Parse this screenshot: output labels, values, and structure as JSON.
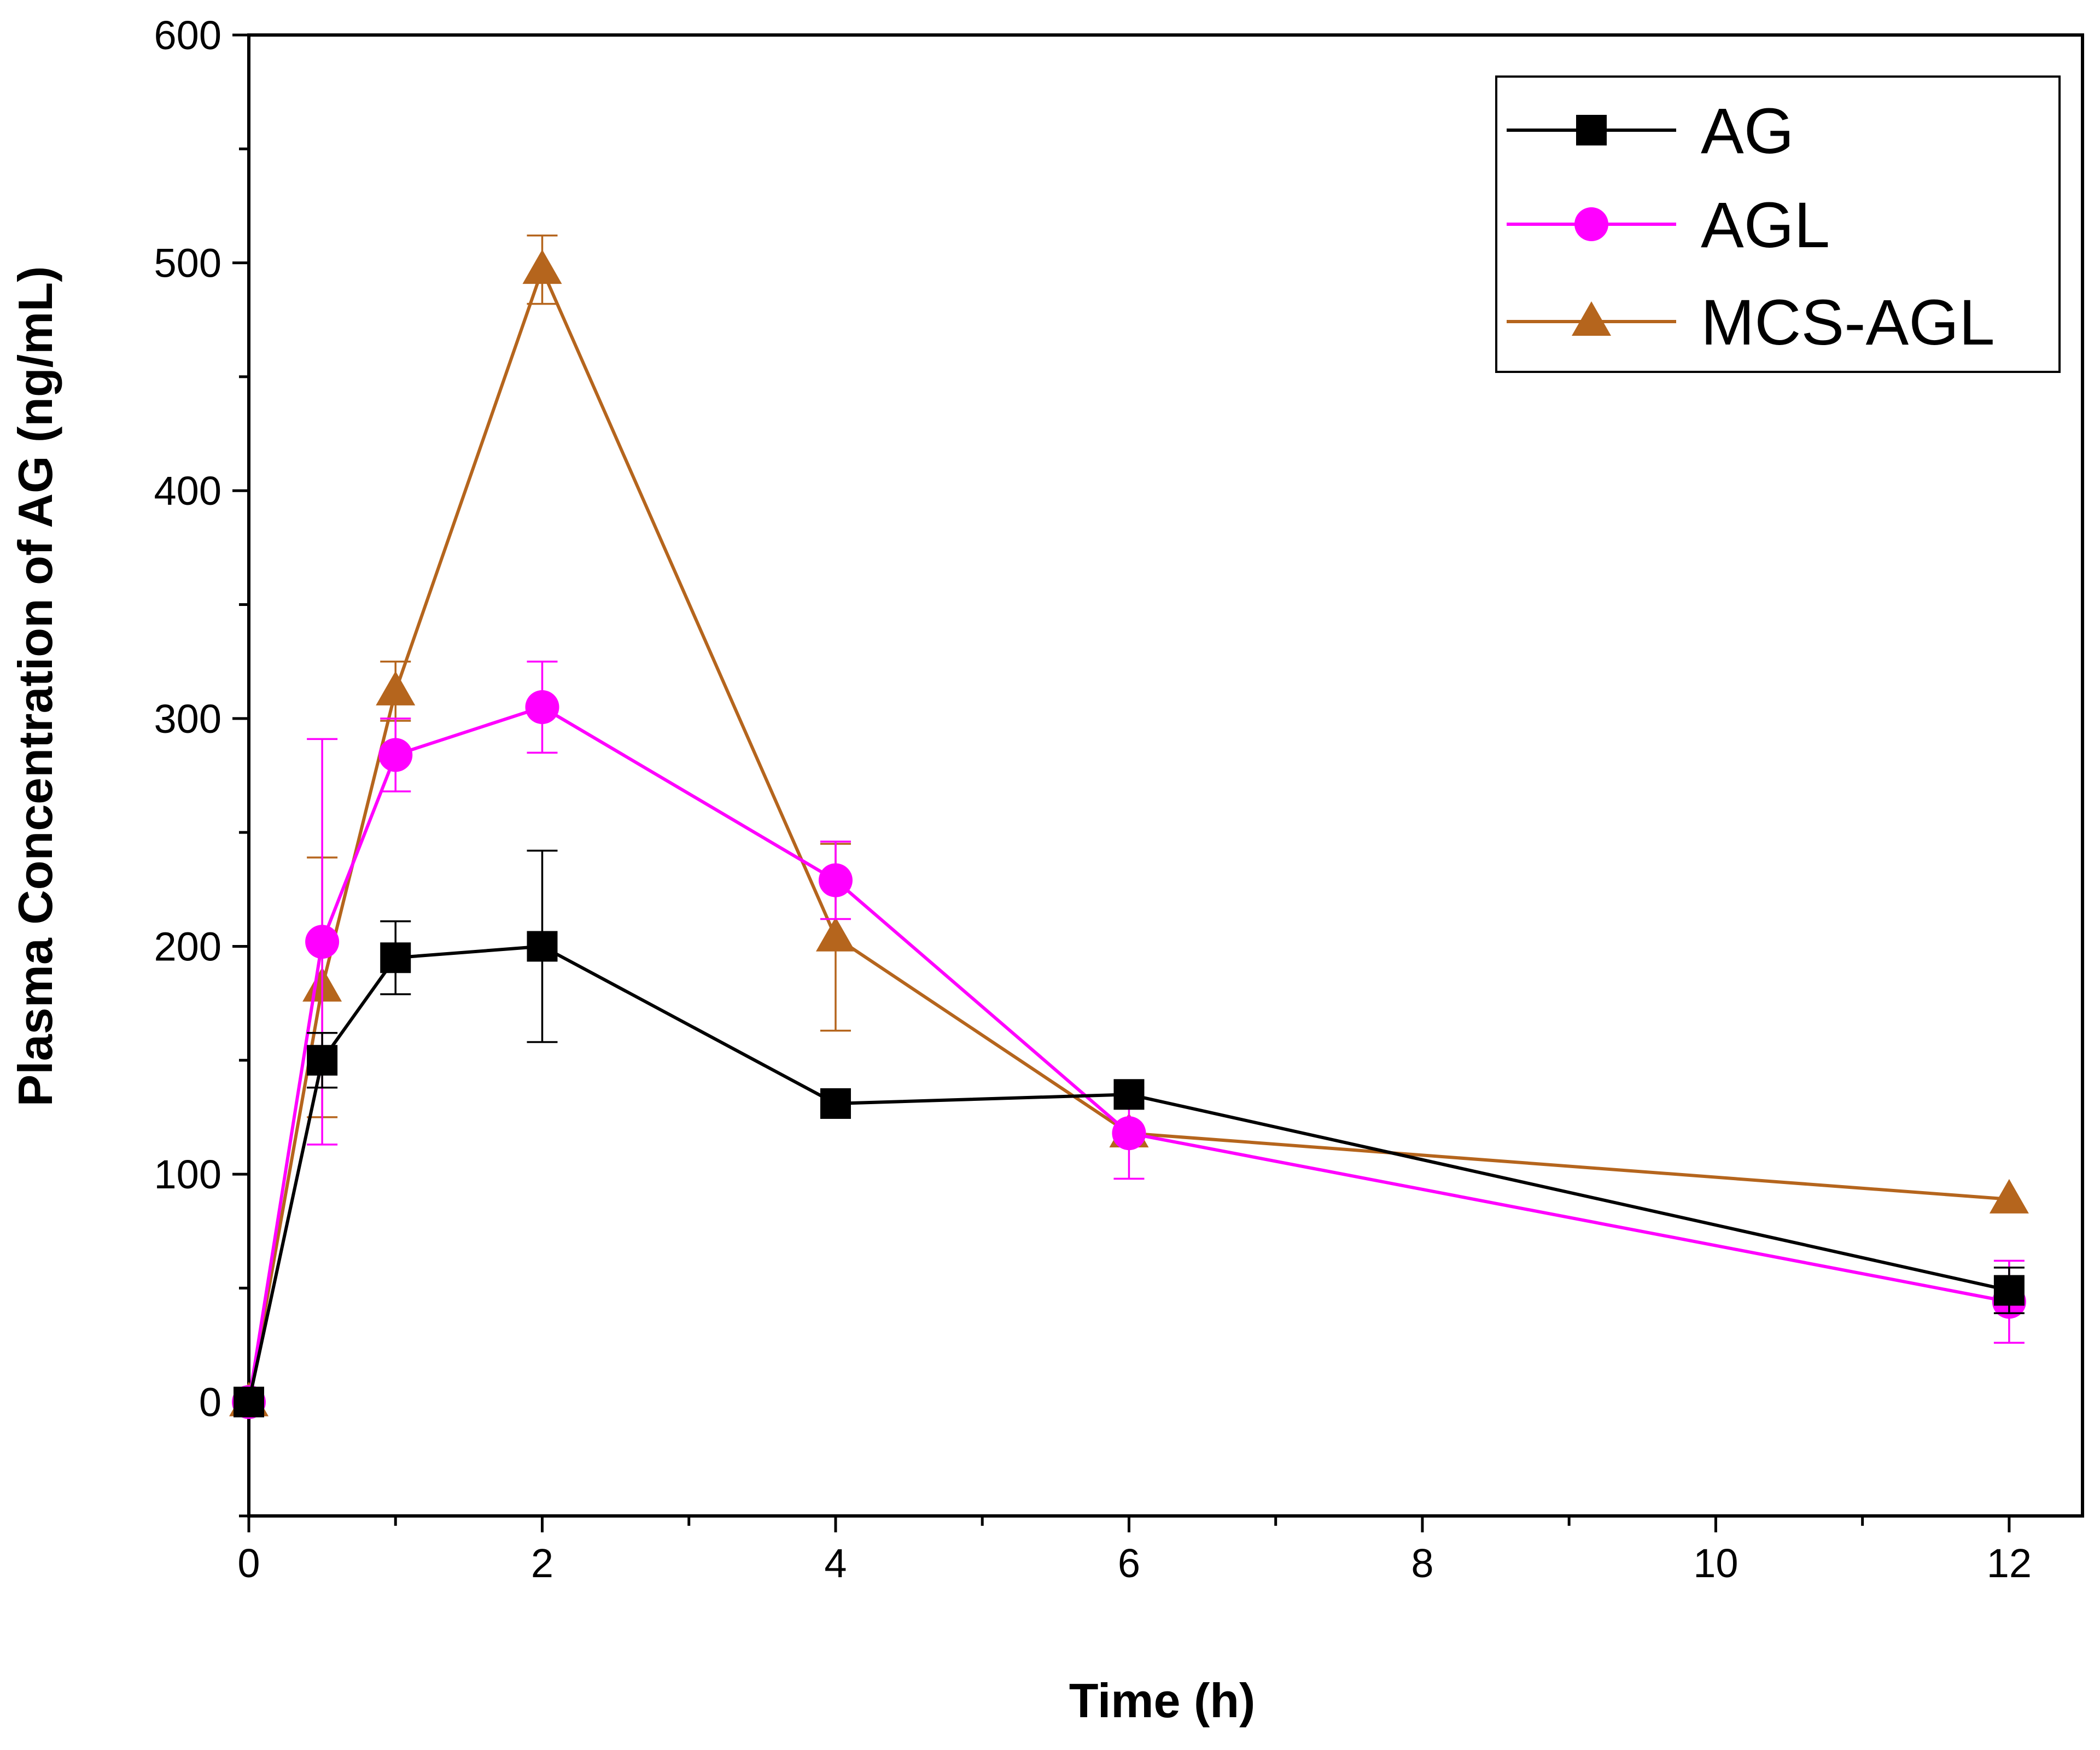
{
  "chart_data": {
    "type": "line",
    "xlabel": "Time (h)",
    "ylabel": "Plasma Concentration of AG (ng/mL)",
    "xlim": [
      0,
      12.5
    ],
    "ylim": [
      -50,
      600
    ],
    "x_ticks": [
      0,
      2,
      4,
      6,
      8,
      10,
      12
    ],
    "x_tick_labels": [
      "0",
      "2",
      "4",
      "6",
      "8",
      "10",
      "12"
    ],
    "y_ticks": [
      0,
      100,
      200,
      300,
      400,
      500,
      600
    ],
    "y_tick_labels": [
      "0",
      "100",
      "200",
      "300",
      "400",
      "500",
      "600"
    ],
    "grid": false,
    "legend_position": "top-right",
    "x": [
      0,
      0.5,
      1,
      2,
      4,
      6,
      12
    ],
    "series": [
      {
        "name": "AG",
        "color": "#000000",
        "marker": "square",
        "values": [
          0,
          150,
          195,
          200,
          131,
          135,
          49
        ],
        "errors": [
          0,
          12,
          16,
          42,
          0,
          0,
          10
        ]
      },
      {
        "name": "AGL",
        "color": "#ff00ff",
        "marker": "circle",
        "values": [
          0,
          202,
          284,
          305,
          229,
          118,
          44
        ],
        "errors": [
          0,
          89,
          16,
          20,
          17,
          20,
          18
        ]
      },
      {
        "name": "MCS-AGL",
        "color": "#b5651d",
        "marker": "triangle",
        "values": [
          0,
          182,
          312,
          497,
          204,
          118,
          89
        ],
        "errors": [
          0,
          57,
          13,
          15,
          41,
          0,
          0
        ]
      }
    ]
  }
}
